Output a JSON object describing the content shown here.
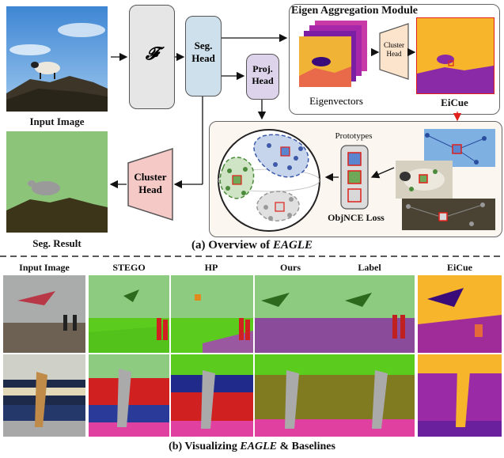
{
  "overview": {
    "input_image_label": "Input Image",
    "backbone_symbol": "𝓕",
    "seg_head_label": "Seg. Head",
    "proj_head_label": "Proj. Head",
    "eigen_module_title": "Eigen Aggregation Module",
    "eigenvectors_label": "Eigenvectors",
    "cluster_head_small_label": "Cluster Head",
    "eicue_label": "EiCue",
    "prototypes_label": "Prototypes",
    "objnce_label": "ObjNCE Loss",
    "cluster_head_label": "Cluster Head",
    "seg_result_label": "Seg. Result",
    "caption_prefix": "(a) Overview of ",
    "caption_emph": "EAGLE"
  },
  "comparison": {
    "columns": [
      "Input Image",
      "STEGO",
      "HP",
      "Ours",
      "Label",
      "EiCue"
    ],
    "caption_prefix": "(b) Visualizing ",
    "caption_emph": "EAGLE",
    "caption_suffix": " & Baselines"
  },
  "colors": {
    "backbone_fill": "#e6e6e6",
    "seg_head_fill": "#cde0ec",
    "proj_head_fill": "#ddd3ea",
    "cluster_head_fill": "#f5c9c6",
    "cluster_head_small_fill": "#fbe3cc",
    "objnce_panel_fill": "#fbf6ef",
    "eicue_marker": "#e0201a"
  }
}
